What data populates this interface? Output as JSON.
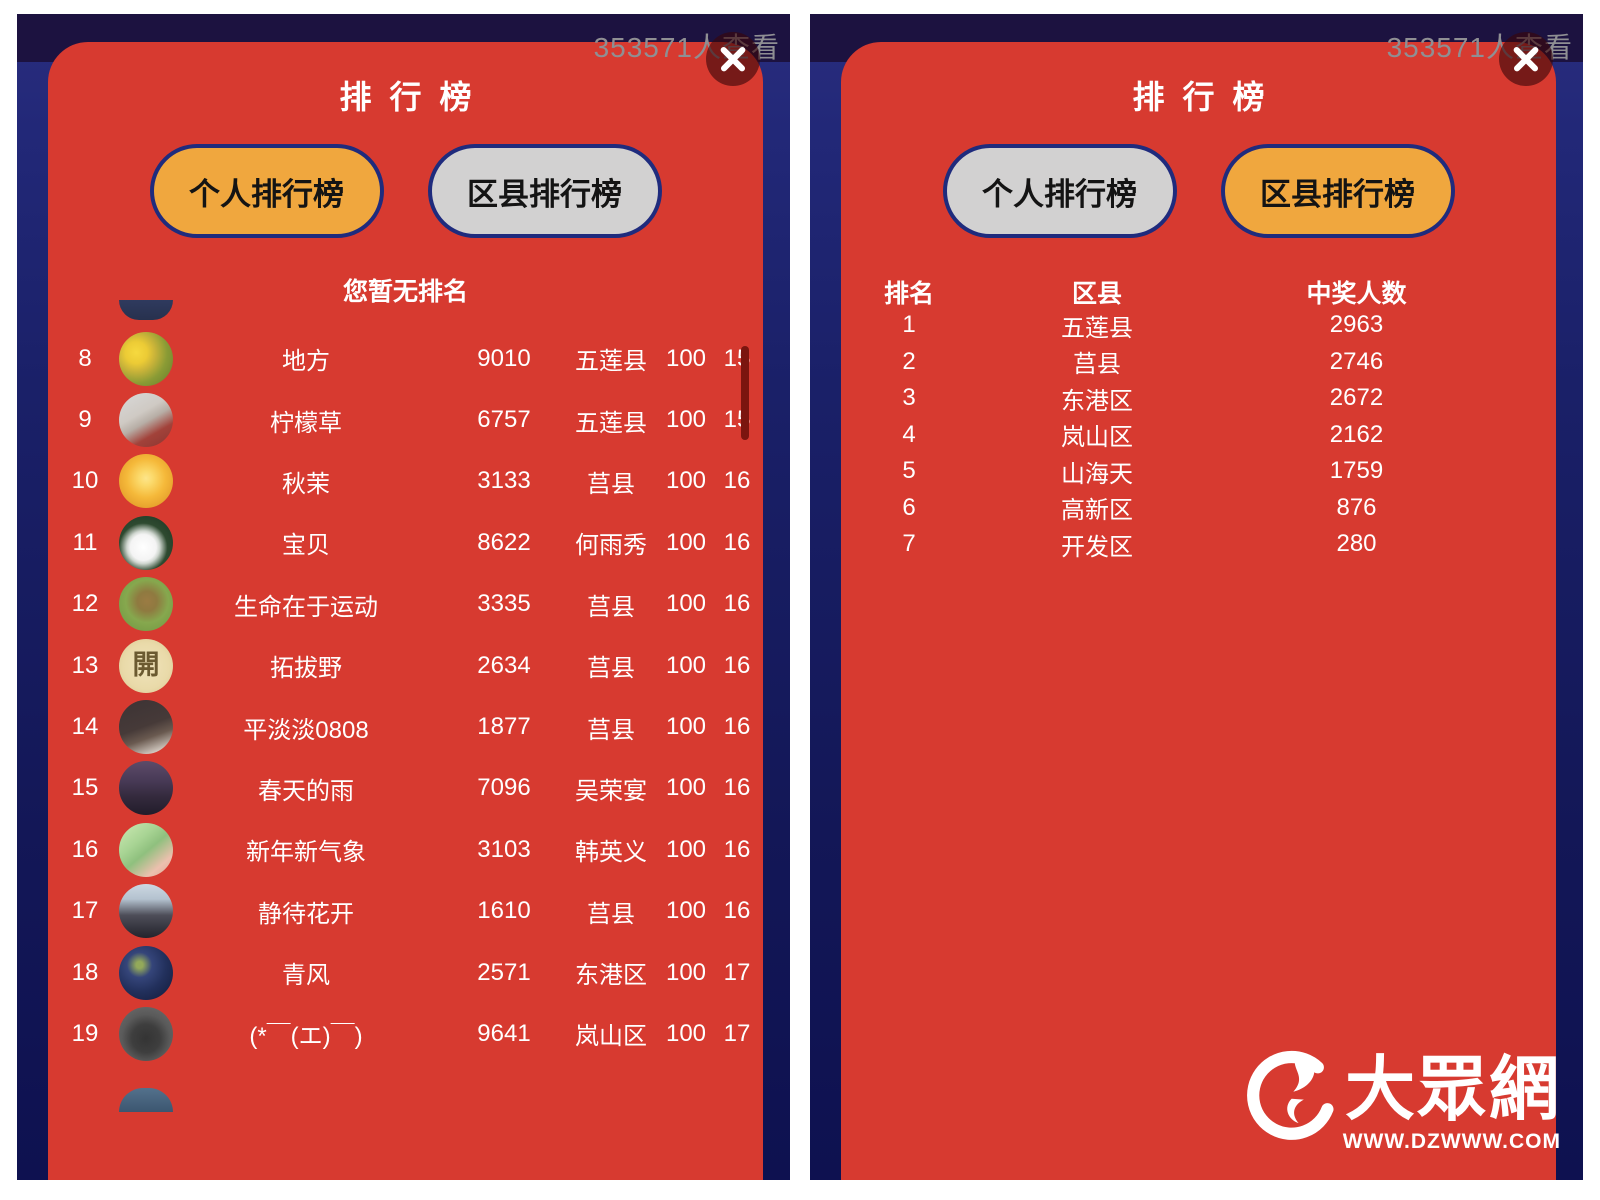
{
  "shared": {
    "viewers_text": "353571人查看"
  },
  "left_panel": {
    "title": "排行榜",
    "tabs": [
      {
        "label": "个人排行榜"
      },
      {
        "label": "区县排行榜"
      }
    ],
    "active_tab": "个人排行榜",
    "no_rank_text": "您暂无排名",
    "rows": [
      {
        "rank": "8",
        "name": "地方",
        "score": "9010",
        "region": "五莲县",
        "hundred": "100",
        "count": "15",
        "avatar": {
          "label": "yellow-flowers",
          "bg": "radial-gradient(circle at 32% 38%, #f6d93f 0%, #eccb35 22%, #c9b339 38%, #8a9b35 62%, #647a2b 100%)"
        }
      },
      {
        "rank": "9",
        "name": "柠檬草",
        "score": "6757",
        "region": "五莲县",
        "hundred": "100",
        "count": "15",
        "avatar": {
          "label": "girl-red-dress",
          "bg": "linear-gradient(150deg, #d9d9d9 0%, #cfcac4 38%, #b7aea6 52%, #a2423a 72%, #8a3530 100%)"
        }
      },
      {
        "rank": "10",
        "name": "秋茉",
        "score": "3133",
        "region": "莒县",
        "hundred": "100",
        "count": "16",
        "avatar": {
          "label": "sunflower",
          "bg": "radial-gradient(circle at 50% 45%, #fde58a 0%, #fbd96a 18%, #f5b93a 48%, #e8a42e 72%, #cf8f28 100%)"
        }
      },
      {
        "rank": "11",
        "name": "宝贝",
        "score": "8622",
        "region": "何雨秀",
        "hundred": "100",
        "count": "16",
        "avatar": {
          "label": "white-rabbit",
          "bg": "radial-gradient(circle at 45% 58%, #ffffff 0%, #f4f4f4 30%, #cfd6cf 38%, #2e4a30 56%, #1b3322 100%)"
        }
      },
      {
        "rank": "12",
        "name": "生命在于运动",
        "score": "3335",
        "region": "莒县",
        "hundred": "100",
        "count": "16",
        "avatar": {
          "label": "deer-on-grass",
          "bg": "radial-gradient(circle at 52% 45%, #9b7b43 0%, #8f7a40 24%, #86a84e 52%, #6d9440 100%)"
        }
      },
      {
        "rank": "13",
        "name": "拓拔野",
        "score": "2634",
        "region": "莒县",
        "hundred": "100",
        "count": "16",
        "avatar": {
          "label": "kai-seal",
          "bg": "radial-gradient(circle at 50% 50%, #f0e3bb 0%, #e9daa9 60%, #d8c48e 100%)",
          "glyph": "開",
          "fg": "#6b5a30"
        }
      },
      {
        "rank": "14",
        "name": "平淡淡0808",
        "score": "1877",
        "region": "莒县",
        "hundred": "100",
        "count": "16",
        "avatar": {
          "label": "indoor-photo",
          "bg": "linear-gradient(160deg, #3c3335 0%, #463a38 48%, #6a5a50 66%, #cfc6bd 88%, #e9e2da 100%)"
        }
      },
      {
        "rank": "15",
        "name": "春天的雨",
        "score": "7096",
        "region": "吴荣宴",
        "hundred": "100",
        "count": "16",
        "avatar": {
          "label": "dark-hair",
          "bg": "linear-gradient(180deg, #5d4b69 0%, #473955 38%, #342a3d 66%, #221c2a 100%)"
        }
      },
      {
        "rank": "16",
        "name": "新年新气象",
        "score": "3103",
        "region": "韩英义",
        "hundred": "100",
        "count": "16",
        "avatar": {
          "label": "girl-in-green",
          "bg": "linear-gradient(140deg, #cdeab4 0%, #a8d494 34%, #8fc07e 52%, #ecc0ae 78%, #dca794 100%)"
        }
      },
      {
        "rank": "17",
        "name": "静待花开",
        "score": "1610",
        "region": "莒县",
        "hundred": "100",
        "count": "16",
        "avatar": {
          "label": "woman-portrait",
          "bg": "linear-gradient(180deg, #ccd8e2 0%, #b4c2cf 28%, #4d4d58 58%, #23232c 100%)"
        }
      },
      {
        "rank": "18",
        "name": "青风",
        "score": "2571",
        "region": "东港区",
        "hundred": "100",
        "count": "17",
        "avatar": {
          "label": "night-flower",
          "bg": "radial-gradient(circle at 38% 35%, #93a95a 0%, #93a95a 7%, #35457a 26%, #22305c 55%, #121a38 100%)"
        }
      },
      {
        "rank": "19",
        "name": "(*￣(エ)￣)",
        "score": "9641",
        "region": "岚山区",
        "hundred": "100",
        "count": "17",
        "avatar": {
          "label": "panda-figure",
          "bg": "radial-gradient(circle at 50% 58%, #343434 0%, #3e3e3e 34%, #5a5a5a 58%, #707070 100%)"
        }
      }
    ]
  },
  "right_panel": {
    "title": "排行榜",
    "tabs": [
      {
        "label": "个人排行榜"
      },
      {
        "label": "区县排行榜"
      }
    ],
    "active_tab": "区县排行榜",
    "table": {
      "headers": [
        "排名",
        "区县",
        "中奖人数"
      ],
      "rows": [
        {
          "rank": "1",
          "district": "五莲县",
          "winners": "2963"
        },
        {
          "rank": "2",
          "district": "莒县",
          "winners": "2746"
        },
        {
          "rank": "3",
          "district": "东港区",
          "winners": "2672"
        },
        {
          "rank": "4",
          "district": "岚山区",
          "winners": "2162"
        },
        {
          "rank": "5",
          "district": "山海天",
          "winners": "1759"
        },
        {
          "rank": "6",
          "district": "高新区",
          "winners": "876"
        },
        {
          "rank": "7",
          "district": "开发区",
          "winners": "280"
        }
      ]
    }
  },
  "watermark": {
    "brand": "大眾網",
    "url": "WWW.DZWWW.COM"
  },
  "colors": {
    "panel_red": "#d73a30",
    "tab_active_orange": "#f0a73e",
    "tab_inactive_gray": "#d2d1d1",
    "tab_border_navy": "#1f2b7d",
    "background_navy": "#1a2068",
    "top_band": "#1c1240",
    "scrollbar_thumb": "#7b150f",
    "viewers_text_gray": "#8f8f93"
  }
}
